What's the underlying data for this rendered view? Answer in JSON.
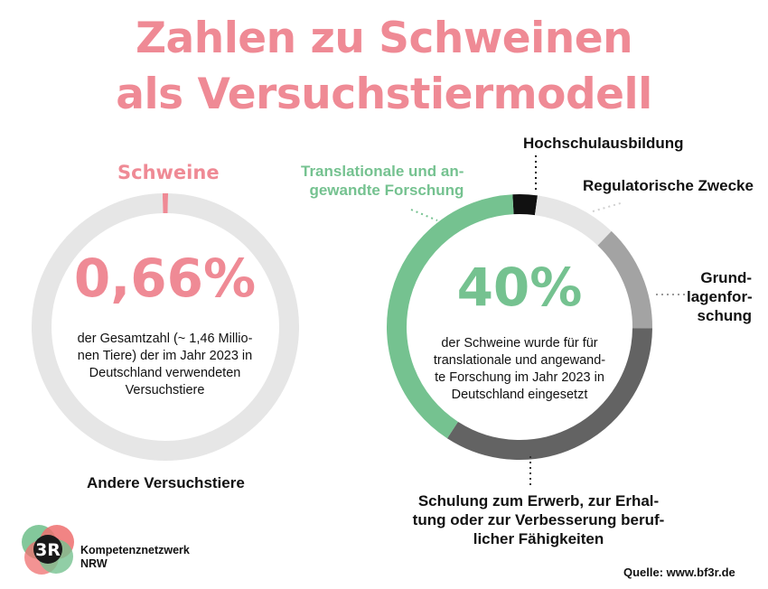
{
  "header": {
    "title_line1": "Zahlen zu Schweinen",
    "title_line2": "als Versuchstiermodell"
  },
  "chart_data": [
    {
      "type": "pie",
      "title": "",
      "slices": [
        {
          "label": "Schweine",
          "value": 0.66,
          "color": "#ef8a95"
        },
        {
          "label": "Andere Versuchstiere",
          "value": 99.34,
          "color": "#e6e6e6"
        }
      ],
      "center_value": "0,66%",
      "center_text": [
        "der Gesamtzahl (~ 1,46 Millio-",
        "nen Tiere) der im Jahr 2023 in",
        "Deutschland verwendeten",
        "Versuchstiere"
      ]
    },
    {
      "type": "pie",
      "title": "",
      "slices": [
        {
          "label": "Hochschulausbildung",
          "value": 3,
          "color": "#111111"
        },
        {
          "label": "Regulatorische Zwecke",
          "value": 10,
          "color": "#e6e6e6"
        },
        {
          "label": "Grundlagenforschung",
          "value": 13,
          "color": "#a3a3a3"
        },
        {
          "label": "Schulung zum Erwerb, zur Erhaltung oder zur Verbesserung beruflicher Fähigkeiten",
          "value": 34,
          "color": "#636363"
        },
        {
          "label": "Translationale und angewandte Forschung",
          "value": 40,
          "color": "#75c290"
        }
      ],
      "center_value": "40%",
      "center_text": [
        "der Schweine wurde für für",
        "translationale und angewand-",
        "te Forschung im Jahr 2023 in",
        "Deutschland eingesetzt"
      ]
    }
  ],
  "labels": {
    "schweine": "Schweine",
    "andere": "Andere Versuchstiere",
    "hochschul": "Hochschulausbildung",
    "regulatorisch": "Regulatorische Zwecke",
    "translational": [
      "Translationale und an-",
      "gewandte Forschung"
    ],
    "grundlagen": [
      "Grund-",
      "lagenfor-",
      "schung"
    ],
    "schulung": [
      "Schulung zum Erwerb, zur Erhal-",
      "tung oder zur Verbesserung beruf-",
      "licher Fähigkeiten"
    ]
  },
  "footer": {
    "logo_text": "3R",
    "org_line1": "Kompetenznetzwerk",
    "org_line2": "NRW",
    "source": "Quelle: www.bf3r.de"
  }
}
